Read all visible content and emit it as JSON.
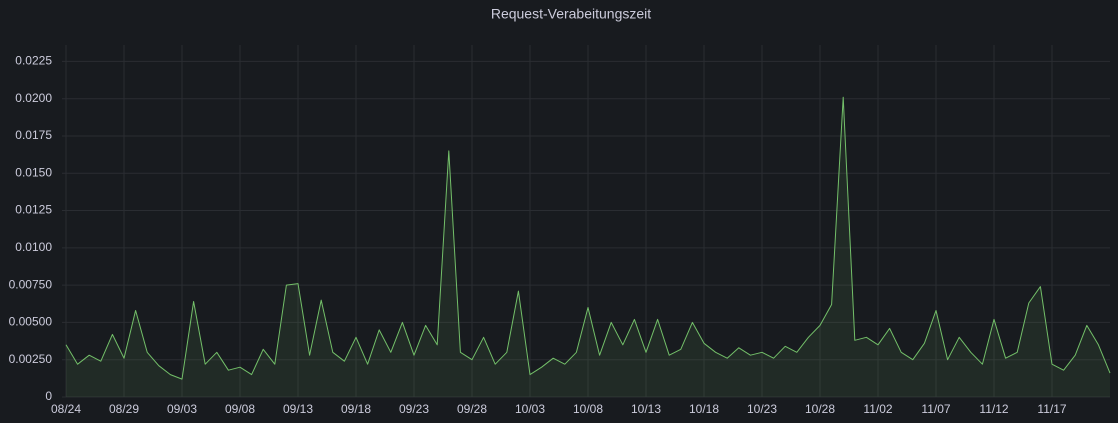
{
  "chart_data": {
    "type": "line",
    "title": "Request-Verabeitungszeit",
    "categories": [
      "08/24",
      null,
      null,
      null,
      null,
      "08/29",
      null,
      null,
      null,
      null,
      "09/03",
      null,
      null,
      null,
      null,
      "09/08",
      null,
      null,
      null,
      null,
      "09/13",
      null,
      null,
      null,
      null,
      "09/18",
      null,
      null,
      null,
      null,
      "09/23",
      null,
      null,
      null,
      null,
      "09/28",
      null,
      null,
      null,
      null,
      "10/03",
      null,
      null,
      null,
      null,
      "10/08",
      null,
      null,
      null,
      null,
      "10/13",
      null,
      null,
      null,
      null,
      "10/18",
      null,
      null,
      null,
      null,
      "10/23",
      null,
      null,
      null,
      null,
      "10/28",
      null,
      null,
      null,
      null,
      "11/02",
      null,
      null,
      null,
      null,
      "11/07",
      null,
      null,
      null,
      null,
      "11/12",
      null,
      null,
      null,
      null,
      "11/17",
      null,
      null,
      null,
      null,
      null
    ],
    "values": [
      0.0035,
      0.0022,
      0.0028,
      0.0024,
      0.0042,
      0.0026,
      0.0058,
      0.003,
      0.0021,
      0.0015,
      0.0012,
      0.0064,
      0.0022,
      0.003,
      0.0018,
      0.002,
      0.0015,
      0.0032,
      0.0022,
      0.0075,
      0.0076,
      0.0028,
      0.0065,
      0.003,
      0.0024,
      0.004,
      0.0022,
      0.0045,
      0.003,
      0.005,
      0.0028,
      0.0048,
      0.0035,
      0.0165,
      0.003,
      0.0025,
      0.004,
      0.0022,
      0.003,
      0.0071,
      0.0015,
      0.002,
      0.0026,
      0.0022,
      0.003,
      0.006,
      0.0028,
      0.005,
      0.0035,
      0.0052,
      0.003,
      0.0052,
      0.0028,
      0.0032,
      0.005,
      0.0036,
      0.003,
      0.0026,
      0.0033,
      0.0028,
      0.003,
      0.0026,
      0.0034,
      0.003,
      0.004,
      0.0048,
      0.0062,
      0.0201,
      0.0038,
      0.004,
      0.0035,
      0.0046,
      0.003,
      0.0025,
      0.0036,
      0.0058,
      0.0025,
      0.004,
      0.003,
      0.0022,
      0.0052,
      0.0026,
      0.003,
      0.0063,
      0.0074,
      0.0022,
      0.0018,
      0.0028,
      0.0048,
      0.0035,
      0.0016
    ],
    "color": "#73bf69",
    "ylim": [
      0,
      0.0236
    ],
    "yticks": [
      0,
      {
        "value": 0.0025,
        "label": "0.00250"
      },
      {
        "value": 0.005,
        "label": "0.00500"
      },
      {
        "value": 0.0075,
        "label": "0.00750"
      },
      {
        "value": 0.01,
        "label": "0.0100"
      },
      {
        "value": 0.0125,
        "label": "0.0125"
      },
      {
        "value": 0.015,
        "label": "0.0150"
      },
      {
        "value": 0.0175,
        "label": "0.0175"
      },
      {
        "value": 0.02,
        "label": "0.0200"
      },
      {
        "value": 0.0225,
        "label": "0.0225"
      }
    ],
    "grid": true
  }
}
